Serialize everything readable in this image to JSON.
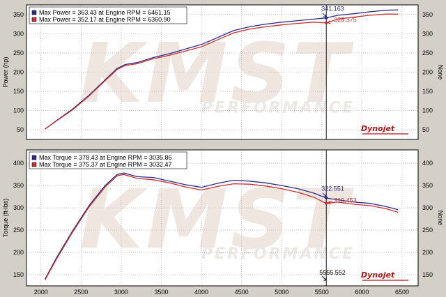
{
  "watermark": "KMST",
  "watermark_sub": "PERFORMANCE",
  "logo_text": "Dynojet",
  "colors": {
    "background": "#d4d0c8",
    "plot_bg": "#ffffff",
    "grid": "#b8b8b8",
    "series_1": "#2a2a8c",
    "series_2": "#c83030",
    "cursor": "#000000",
    "watermark": "#f0e6e0",
    "logo": "#b01818"
  },
  "chart_data": [
    {
      "type": "line",
      "ylabel": "Power (hp)",
      "right_label": "None",
      "xlim": [
        1820,
        6700
      ],
      "ylim": [
        25,
        375
      ],
      "yticks": [
        50,
        100,
        150,
        200,
        250,
        300,
        350
      ],
      "xticks": [],
      "grid": true,
      "legend_position": "top-left",
      "legend": [
        "Max Power = 363.43 at Engine RPM = 6461.15",
        "Max Power = 352.17 at Engine RPM = 6360.90"
      ],
      "cursor_x": 5555.552,
      "annotations": [
        {
          "text": "341.163",
          "x": 5555.552,
          "y": 341.163,
          "series": 0
        },
        {
          "text": "328.375",
          "x": 5555.552,
          "y": 328.375,
          "series": 1
        }
      ],
      "series": [
        {
          "x": [
            2050,
            2200,
            2400,
            2600,
            2800,
            2950,
            3050,
            3200,
            3400,
            3600,
            3800,
            4000,
            4200,
            4400,
            4600,
            4800,
            5000,
            5200,
            5400,
            5555,
            5700,
            5900,
            6100,
            6300,
            6450
          ],
          "y": [
            52,
            75,
            105,
            140,
            180,
            210,
            220,
            225,
            238,
            248,
            260,
            272,
            290,
            308,
            318,
            325,
            330,
            334,
            338,
            341,
            348,
            352,
            357,
            361,
            362
          ]
        },
        {
          "x": [
            2050,
            2200,
            2400,
            2600,
            2800,
            2950,
            3050,
            3200,
            3400,
            3600,
            3800,
            4000,
            4200,
            4400,
            4600,
            4800,
            5000,
            5200,
            5400,
            5555,
            5700,
            5900,
            6100,
            6300,
            6450
          ],
          "y": [
            52,
            74,
            103,
            138,
            178,
            207,
            217,
            222,
            235,
            244,
            255,
            266,
            284,
            302,
            312,
            318,
            323,
            327,
            330,
            328,
            338,
            343,
            348,
            351,
            351
          ]
        }
      ]
    },
    {
      "type": "line",
      "ylabel": "Torque (ft-lbs)",
      "right_label": "None",
      "xlim": [
        1820,
        6700
      ],
      "ylim": [
        125,
        430
      ],
      "yticks": [
        150,
        200,
        250,
        300,
        350,
        400
      ],
      "xticks": [
        2000,
        2500,
        3000,
        3500,
        4000,
        4500,
        5000,
        5500,
        6000,
        6500
      ],
      "grid": true,
      "legend_position": "top-left",
      "legend": [
        "Max Torque = 378.43 at Engine RPM = 3035.86",
        "Max Torque = 375.37 at Engine RPM = 3032.47"
      ],
      "cursor_x": 5555.552,
      "cursor_label": "5555.552",
      "annotations": [
        {
          "text": "322.551",
          "x": 5555.552,
          "y": 322.551,
          "series": 0
        },
        {
          "text": "310.453",
          "x": 5555.552,
          "y": 310.453,
          "series": 1
        }
      ],
      "series": [
        {
          "x": [
            2050,
            2200,
            2400,
            2600,
            2800,
            2950,
            3035,
            3200,
            3400,
            3600,
            3800,
            4000,
            4200,
            4400,
            4600,
            4800,
            5000,
            5200,
            5400,
            5555,
            5700,
            5900,
            6100,
            6300,
            6450
          ],
          "y": [
            140,
            190,
            250,
            305,
            350,
            375,
            378,
            370,
            368,
            360,
            352,
            346,
            355,
            362,
            360,
            356,
            350,
            343,
            333,
            322,
            318,
            313,
            310,
            303,
            296
          ]
        },
        {
          "x": [
            2050,
            2200,
            2400,
            2600,
            2800,
            2950,
            3032,
            3200,
            3400,
            3600,
            3800,
            4000,
            4200,
            4400,
            4600,
            4800,
            5000,
            5200,
            5400,
            5555,
            5700,
            5900,
            6100,
            6300,
            6450
          ],
          "y": [
            138,
            187,
            247,
            302,
            347,
            372,
            375,
            366,
            363,
            356,
            347,
            340,
            348,
            354,
            353,
            349,
            343,
            335,
            324,
            310,
            313,
            308,
            305,
            298,
            290
          ]
        }
      ]
    }
  ]
}
